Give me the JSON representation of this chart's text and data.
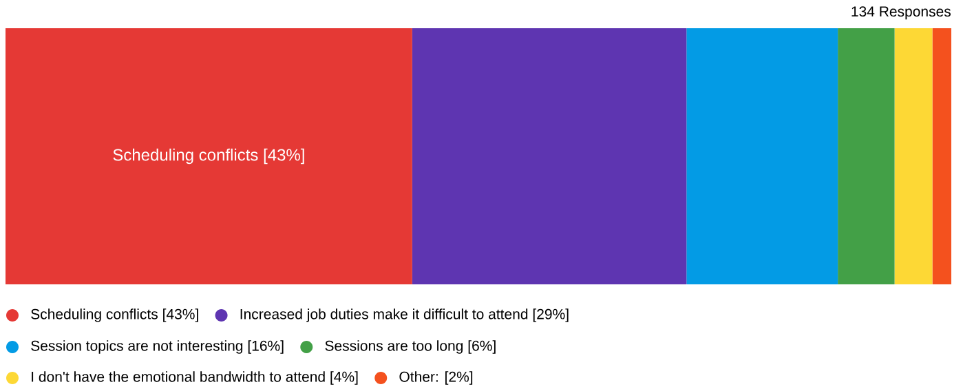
{
  "chart_data": {
    "type": "bar",
    "orientation": "horizontal",
    "stacked": true,
    "categories": [
      null
    ],
    "legend": "bottom",
    "annotations": [
      "134 Responses"
    ],
    "series": [
      {
        "name": "Scheduling conflicts [43%]",
        "color": "#e53935",
        "values": [
          43
        ],
        "value_labels": [
          "Scheduling conflicts [43%]"
        ]
      },
      {
        "name": "Increased job duties make it difficult to attend [29%]",
        "color": "#5e35b1",
        "values": [
          29
        ]
      },
      {
        "name": "Session topics are not interesting [16%]",
        "color": "#039be5",
        "values": [
          16
        ]
      },
      {
        "name": "Sessions are too long [6%]",
        "color": "#43a047",
        "values": [
          6
        ]
      },
      {
        "name": "I don't have the emotional bandwidth to attend [4%]",
        "color": "#fdd835",
        "values": [
          4
        ]
      },
      {
        "name": "Other: [2%]",
        "color": "#f4511e",
        "values": [
          2
        ]
      }
    ]
  }
}
